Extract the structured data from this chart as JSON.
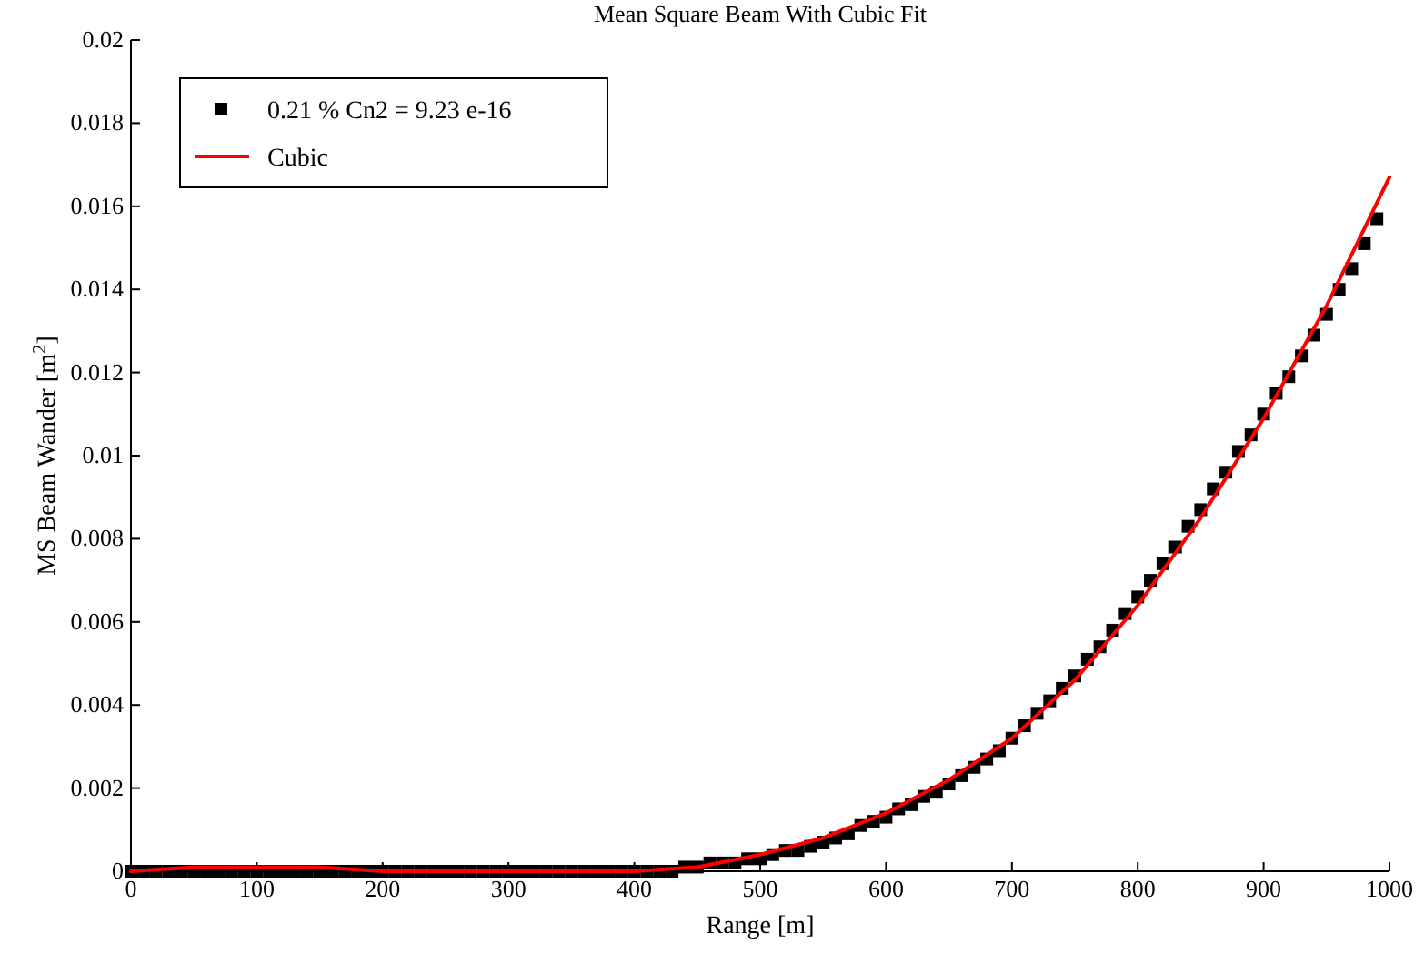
{
  "chart_data": {
    "type": "scatter",
    "title": "Mean Square Beam With Cubic Fit",
    "xlabel": "Range [m]",
    "ylabel": "MS Beam Wander [m$^{2}$]",
    "xlim": [
      0,
      1000
    ],
    "xticks": [
      0,
      100,
      200,
      300,
      400,
      500,
      600,
      700,
      800,
      900,
      1000
    ],
    "ylim": [
      0,
      0.02
    ],
    "yticks": [
      0,
      0.002,
      0.004,
      0.006,
      0.008,
      0.01,
      0.012,
      0.014,
      0.016,
      0.018,
      0.02
    ],
    "legend": "top left",
    "grid": false,
    "series": [
      {
        "name": "0.21 %  Cn2  = 9.23 e-16",
        "marker": "square",
        "color": "#000000",
        "x": [
          0,
          10,
          20,
          30,
          40,
          50,
          60,
          70,
          80,
          90,
          100,
          110,
          120,
          130,
          140,
          150,
          160,
          170,
          180,
          190,
          200,
          210,
          220,
          230,
          240,
          250,
          260,
          270,
          280,
          290,
          300,
          310,
          320,
          330,
          340,
          350,
          360,
          370,
          380,
          390,
          400,
          410,
          420,
          430,
          440,
          450,
          460,
          470,
          480,
          490,
          500,
          510,
          520,
          530,
          540,
          550,
          560,
          570,
          580,
          590,
          600,
          610,
          620,
          630,
          640,
          650,
          660,
          670,
          680,
          690,
          700,
          710,
          720,
          730,
          740,
          750,
          760,
          770,
          780,
          790,
          800,
          810,
          820,
          830,
          840,
          850,
          860,
          870,
          880,
          890,
          900,
          910,
          920,
          930,
          940,
          950,
          960,
          970,
          980,
          990
        ],
        "values": [
          0,
          0,
          0,
          0,
          0,
          0,
          0,
          0,
          0,
          0,
          0,
          0,
          0,
          0,
          0,
          0,
          0,
          0,
          0,
          0,
          0,
          0,
          0,
          0,
          0,
          0,
          0,
          0,
          0,
          0,
          0,
          0,
          0,
          0,
          0,
          0,
          0,
          0,
          0,
          0,
          0,
          0,
          0,
          0,
          0.0001,
          0.0001,
          0.0002,
          0.0002,
          0.0002,
          0.0003,
          0.0003,
          0.0004,
          0.0005,
          0.0005,
          0.0006,
          0.0007,
          0.0008,
          0.0009,
          0.0011,
          0.0012,
          0.0013,
          0.0015,
          0.0016,
          0.0018,
          0.0019,
          0.0021,
          0.0023,
          0.0025,
          0.0027,
          0.0029,
          0.0032,
          0.0035,
          0.0038,
          0.0041,
          0.0044,
          0.0047,
          0.0051,
          0.0054,
          0.0058,
          0.0062,
          0.0066,
          0.007,
          0.0074,
          0.0078,
          0.0083,
          0.0087,
          0.0092,
          0.0096,
          0.0101,
          0.0105,
          0.011,
          0.0115,
          0.0119,
          0.0124,
          0.0129,
          0.0134,
          0.014,
          0.0145,
          0.0151,
          0.0157
        ]
      },
      {
        "name": "Cubic",
        "type": "line",
        "color": "#ff0000",
        "line_style": "solid",
        "marker": "none",
        "x": [
          0,
          50,
          100,
          150,
          200,
          250,
          300,
          350,
          400,
          450,
          500,
          550,
          600,
          650,
          700,
          750,
          800,
          850,
          900,
          950,
          1000
        ],
        "values": [
          0,
          0.0001,
          0.0001,
          0.0001,
          0,
          0,
          0,
          0,
          0,
          0.0001,
          0.0004,
          0.0008,
          0.0014,
          0.0022,
          0.0032,
          0.0046,
          0.0064,
          0.0085,
          0.0109,
          0.0136,
          0.0167
        ]
      }
    ]
  }
}
